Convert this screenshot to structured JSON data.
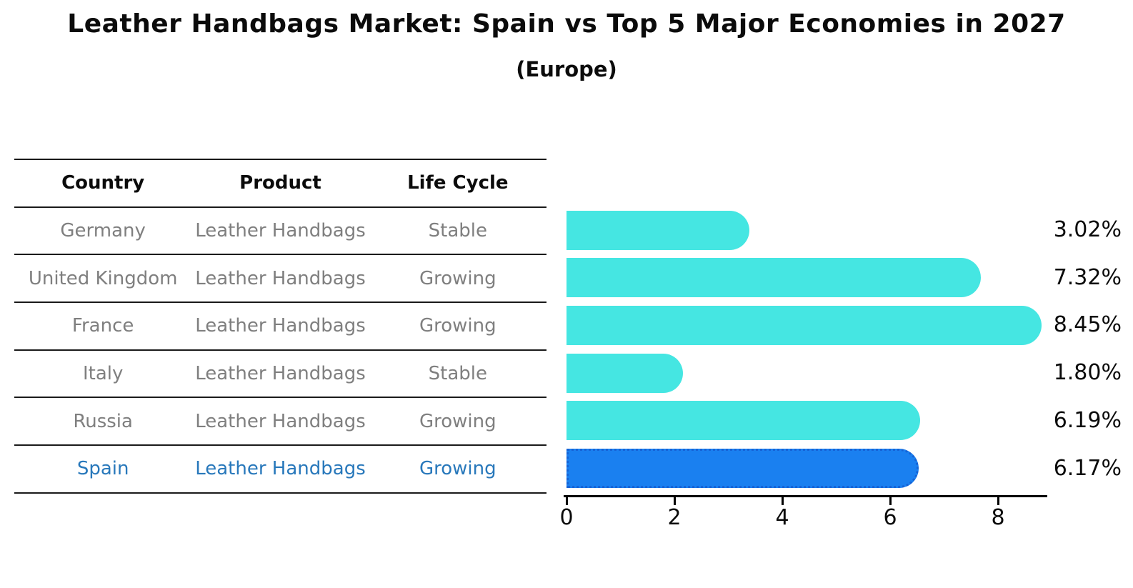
{
  "title": "Leather Handbags Market: Spain vs Top 5 Major Economies in 2027",
  "subtitle": "(Europe)",
  "table": {
    "headers": [
      "Country",
      "Product",
      "Life Cycle"
    ],
    "rows": [
      {
        "country": "Germany",
        "product": "Leather Handbags",
        "life_cycle": "Stable",
        "highlighted": false
      },
      {
        "country": "United Kingdom",
        "product": "Leather Handbags",
        "life_cycle": "Growing",
        "highlighted": false
      },
      {
        "country": "France",
        "product": "Leather Handbags",
        "life_cycle": "Growing",
        "highlighted": false
      },
      {
        "country": "Italy",
        "product": "Leather Handbags",
        "life_cycle": "Stable",
        "highlighted": false
      },
      {
        "country": "Russia",
        "product": "Leather Handbags",
        "life_cycle": "Growing",
        "highlighted": false
      },
      {
        "country": "Spain",
        "product": "Leather Handbags",
        "life_cycle": "Growing",
        "highlighted": true
      }
    ]
  },
  "chart_data": {
    "type": "bar",
    "orientation": "horizontal",
    "categories": [
      "Germany",
      "United Kingdom",
      "France",
      "Italy",
      "Russia",
      "Spain"
    ],
    "values": [
      3.02,
      7.32,
      8.45,
      1.8,
      6.19,
      6.17
    ],
    "value_labels": [
      "3.02%",
      "7.32%",
      "8.45%",
      "1.80%",
      "6.19%",
      "6.17%"
    ],
    "x_ticks": [
      0,
      2,
      4,
      6,
      8
    ],
    "xlim": [
      0,
      8.9
    ],
    "highlight_index": 5,
    "grid": false,
    "legend": false,
    "title": "Leather Handbags Market: Spain vs Top 5 Major Economies in 2027 (Europe)",
    "xlabel": "",
    "ylabel": ""
  },
  "colors": {
    "bar": "#45e6e2",
    "highlight_bar": "#1a80f0",
    "highlight_border": "#1663d6",
    "highlight_text": "#2878bb",
    "table_text": "#7f7f7f",
    "heading_text": "#0b0b0b",
    "axis": "#000000"
  }
}
